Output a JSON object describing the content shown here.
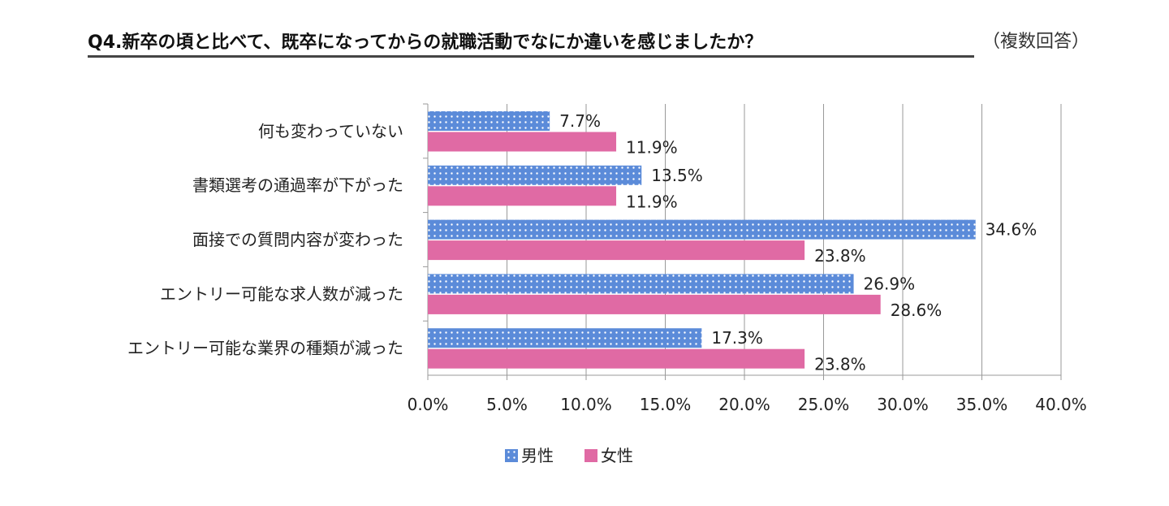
{
  "chart_data": {
    "type": "bar",
    "orientation": "horizontal",
    "title": "Q4.新卒の頃と比べて、既卒になってからの就職活動でなにか違いを感じましたか？",
    "subtitle": "（複数回答）",
    "categories": [
      "何も変わっていない",
      "書類選考の通過率が下がった",
      "面接での質問内容が変わった",
      "エントリー可能な求人数が減った",
      "エントリー可能な業界の種類が減った"
    ],
    "series": [
      {
        "name": "男性",
        "values": [
          7.7,
          13.5,
          34.6,
          26.9,
          17.3
        ],
        "color": "#5b8bd9",
        "pattern": "dots"
      },
      {
        "name": "女性",
        "values": [
          11.9,
          11.9,
          23.8,
          28.6,
          23.8
        ],
        "color": "#e06aa4"
      }
    ],
    "xlim": [
      0,
      40
    ],
    "xticks": [
      "0.0%",
      "5.0%",
      "10.0%",
      "15.0%",
      "20.0%",
      "25.0%",
      "30.0%",
      "35.0%",
      "40.0%"
    ],
    "grid": true,
    "legend": "bottom"
  }
}
